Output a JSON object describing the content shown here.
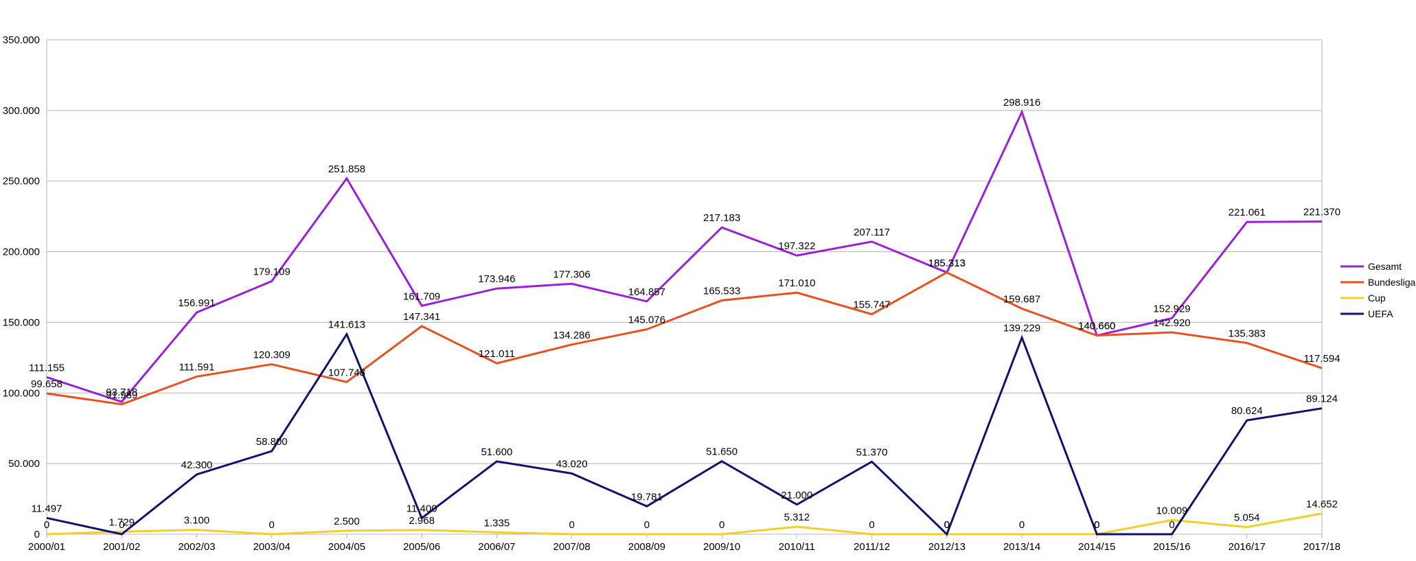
{
  "chart_data": {
    "type": "line",
    "categories": [
      "2000/01",
      "2001/02",
      "2002/03",
      "2003/04",
      "2004/05",
      "2005/06",
      "2006/07",
      "2007/08",
      "2008/09",
      "2009/10",
      "2010/11",
      "2011/12",
      "2012/13",
      "2013/14",
      "2014/15",
      "2015/16",
      "2016/17",
      "2017/18"
    ],
    "ylim": [
      0,
      350000
    ],
    "y_ticks": [
      {
        "value": 0,
        "label": "0"
      },
      {
        "value": 50000,
        "label": "50.000"
      },
      {
        "value": 100000,
        "label": "100.000"
      },
      {
        "value": 150000,
        "label": "150.000"
      },
      {
        "value": 200000,
        "label": "200.000"
      },
      {
        "value": 250000,
        "label": "250.000"
      },
      {
        "value": 300000,
        "label": "300.000"
      },
      {
        "value": 350000,
        "label": "350.000"
      }
    ],
    "grid": true,
    "legend_position": "right",
    "series": [
      {
        "name": "Gesamt",
        "color": "#9b1fd9",
        "values": [
          111155,
          93718,
          156991,
          179109,
          251858,
          161709,
          173946,
          177306,
          164857,
          217183,
          197322,
          207117,
          185313,
          298916,
          140660,
          152929,
          221061,
          221370
        ],
        "labels": [
          "111.155",
          "93.718",
          "156.991",
          "179.109",
          "251.858",
          "161.709",
          "173.946",
          "177.306",
          "164.857",
          "217.183",
          "197.322",
          "207.117",
          "185.313",
          "298.916",
          "140.660",
          "152.929",
          "221.061",
          "221.370"
        ]
      },
      {
        "name": "Bundesliga",
        "color": "#e8501e",
        "values": [
          99658,
          91989,
          111591,
          120309,
          107748,
          147341,
          121011,
          134286,
          145076,
          165533,
          171010,
          155747,
          185313,
          159687,
          140660,
          142920,
          135383,
          117594
        ],
        "labels": [
          "99.658",
          "91.989",
          "111.591",
          "120.309",
          "107.748",
          "147.341",
          "121.011",
          "134.286",
          "145.076",
          "165.533",
          "171.010",
          "155.747",
          "185.313",
          "159.687",
          "140.660",
          "142.920",
          "135.383",
          "117.594"
        ]
      },
      {
        "name": "Cup",
        "color": "#f2cf2a",
        "values": [
          0,
          1729,
          3100,
          0,
          2500,
          2968,
          1335,
          0,
          0,
          0,
          5312,
          0,
          0,
          0,
          0,
          10009,
          5054,
          14652
        ],
        "labels": [
          "0",
          "1.729",
          "3.100",
          "0",
          "2.500",
          "2.968",
          "1.335",
          "0",
          "0",
          "0",
          "5.312",
          "0",
          "0",
          "0",
          "0",
          "10.009",
          "5.054",
          "14.652"
        ]
      },
      {
        "name": "UEFA",
        "color": "#10126e",
        "values": [
          11497,
          0,
          42300,
          58800,
          141613,
          11400,
          51600,
          43020,
          19781,
          51650,
          21000,
          51370,
          0,
          139229,
          0,
          0,
          80624,
          89124
        ],
        "labels": [
          "11.497",
          "0",
          "42.300",
          "58.800",
          "141.613",
          "11.400",
          "51.600",
          "43.020",
          "19.781",
          "51.650",
          "21.000",
          "51.370",
          "0",
          "139.229",
          "0",
          "0",
          "80.624",
          "89.124"
        ]
      }
    ]
  }
}
